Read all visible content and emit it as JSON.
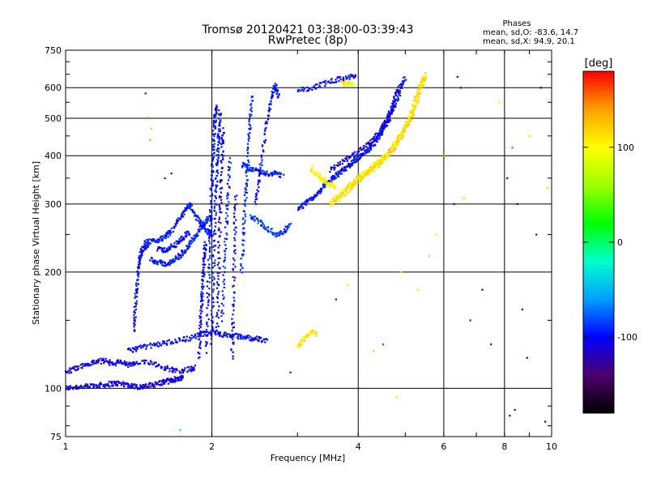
{
  "chart_data": {
    "type": "scatter",
    "title": "Tromsø 20120421 03:38:00-03:39:43",
    "subtitle": "RwPretec (8p)",
    "xlabel": "Frequency [MHz]",
    "ylabel": "Stationary phase Virtual Height [km]",
    "x_scale": "log",
    "y_scale": "log",
    "xlim": [
      1,
      10
    ],
    "ylim": [
      75,
      750
    ],
    "x_ticks": [
      1,
      2,
      4,
      6,
      8,
      10
    ],
    "y_ticks": [
      75,
      100,
      200,
      300,
      400,
      500,
      600,
      750
    ],
    "grid": true,
    "stats": {
      "heading": "Phases",
      "line_o": "mean, sd,O:  -83.6, 14.7",
      "line_x": "mean, sd,X:  94.9, 20.1"
    },
    "colorbar": {
      "label": "[deg]",
      "range": [
        -180,
        180
      ],
      "ticks": [
        100,
        0,
        -100
      ],
      "colormap": [
        "#000000",
        "#4b006e",
        "#0000ff",
        "#00a0ff",
        "#00ffcc",
        "#00ff00",
        "#a0ff00",
        "#ffff00",
        "#ffa000",
        "#ff0000"
      ]
    },
    "traces": [
      {
        "phase": -110,
        "points": [
          [
            1.0,
            100
          ],
          [
            1.05,
            101
          ],
          [
            1.1,
            101
          ],
          [
            1.15,
            102
          ],
          [
            1.2,
            102
          ],
          [
            1.25,
            103
          ],
          [
            1.3,
            103
          ],
          [
            1.35,
            102
          ],
          [
            1.4,
            101
          ],
          [
            1.45,
            101
          ],
          [
            1.5,
            102
          ],
          [
            1.55,
            103
          ],
          [
            1.6,
            104
          ],
          [
            1.65,
            105
          ],
          [
            1.7,
            106
          ],
          [
            1.75,
            107
          ]
        ]
      },
      {
        "phase": -105,
        "points": [
          [
            1.0,
            110
          ],
          [
            1.05,
            113
          ],
          [
            1.1,
            115
          ],
          [
            1.15,
            117
          ],
          [
            1.2,
            118
          ],
          [
            1.25,
            116
          ],
          [
            1.3,
            117
          ],
          [
            1.35,
            115
          ],
          [
            1.4,
            116
          ],
          [
            1.5,
            117
          ],
          [
            1.6,
            113
          ],
          [
            1.7,
            111
          ],
          [
            1.8,
            112
          ],
          [
            1.85,
            113
          ]
        ]
      },
      {
        "phase": -100,
        "points": [
          [
            1.35,
            125
          ],
          [
            1.4,
            127
          ],
          [
            1.5,
            129
          ],
          [
            1.6,
            131
          ],
          [
            1.7,
            133
          ],
          [
            1.8,
            135
          ],
          [
            1.9,
            138
          ],
          [
            2.0,
            140
          ],
          [
            2.1,
            138
          ],
          [
            2.2,
            137
          ],
          [
            2.3,
            136
          ],
          [
            2.4,
            135
          ],
          [
            2.5,
            134
          ],
          [
            2.6,
            133
          ]
        ]
      },
      {
        "phase": -100,
        "points": [
          [
            1.38,
            140
          ],
          [
            1.39,
            160
          ],
          [
            1.4,
            180
          ],
          [
            1.41,
            200
          ],
          [
            1.42,
            215
          ],
          [
            1.43,
            225
          ],
          [
            1.45,
            232
          ],
          [
            1.48,
            236
          ]
        ]
      },
      {
        "phase": -95,
        "points": [
          [
            1.45,
            238
          ],
          [
            1.5,
            240
          ],
          [
            1.55,
            242
          ],
          [
            1.6,
            246
          ],
          [
            1.65,
            255
          ],
          [
            1.7,
            270
          ],
          [
            1.75,
            285
          ],
          [
            1.8,
            300
          ],
          [
            1.85,
            280
          ],
          [
            1.9,
            265
          ],
          [
            1.95,
            255
          ],
          [
            2.0,
            250
          ]
        ]
      },
      {
        "phase": -95,
        "points": [
          [
            1.5,
            215
          ],
          [
            1.55,
            212
          ],
          [
            1.6,
            210
          ],
          [
            1.65,
            212
          ],
          [
            1.7,
            218
          ],
          [
            1.75,
            226
          ],
          [
            1.8,
            236
          ],
          [
            1.85,
            248
          ],
          [
            1.9,
            260
          ],
          [
            1.95,
            272
          ],
          [
            2.0,
            280
          ]
        ]
      },
      {
        "phase": -100,
        "points": [
          [
            1.55,
            230
          ],
          [
            1.6,
            228
          ],
          [
            1.65,
            232
          ],
          [
            1.7,
            238
          ],
          [
            1.75,
            246
          ],
          [
            1.8,
            255
          ]
        ]
      },
      {
        "phase": -105,
        "points": [
          [
            1.88,
            120
          ],
          [
            1.89,
            140
          ],
          [
            1.9,
            160
          ],
          [
            1.91,
            180
          ],
          [
            1.92,
            200
          ],
          [
            1.93,
            220
          ],
          [
            1.94,
            240
          ]
        ]
      },
      {
        "phase": -100,
        "points": [
          [
            1.95,
            125
          ],
          [
            1.96,
            160
          ],
          [
            1.97,
            200
          ],
          [
            1.98,
            250
          ],
          [
            1.99,
            300
          ],
          [
            2.0,
            350
          ],
          [
            2.01,
            400
          ],
          [
            2.02,
            450
          ],
          [
            2.03,
            500
          ],
          [
            2.04,
            540
          ]
        ]
      },
      {
        "phase": -95,
        "points": [
          [
            2.0,
            130
          ],
          [
            2.01,
            170
          ],
          [
            2.02,
            220
          ],
          [
            2.03,
            280
          ],
          [
            2.04,
            330
          ],
          [
            2.05,
            380
          ],
          [
            2.06,
            430
          ],
          [
            2.07,
            480
          ],
          [
            2.08,
            520
          ]
        ]
      },
      {
        "phase": -110,
        "points": [
          [
            2.05,
            140
          ],
          [
            2.06,
            180
          ],
          [
            2.07,
            230
          ],
          [
            2.08,
            290
          ],
          [
            2.09,
            350
          ],
          [
            2.1,
            420
          ],
          [
            2.11,
            470
          ]
        ]
      },
      {
        "phase": -95,
        "points": [
          [
            2.1,
            150
          ],
          [
            2.12,
            200
          ],
          [
            2.14,
            260
          ],
          [
            2.16,
            320
          ],
          [
            2.18,
            400
          ]
        ]
      },
      {
        "phase": -105,
        "points": [
          [
            2.2,
            120
          ],
          [
            2.21,
            150
          ],
          [
            2.22,
            200
          ],
          [
            2.23,
            260
          ],
          [
            2.24,
            320
          ]
        ]
      },
      {
        "phase": -90,
        "points": [
          [
            2.3,
            200
          ],
          [
            2.32,
            250
          ],
          [
            2.34,
            300
          ],
          [
            2.36,
            350
          ],
          [
            2.38,
            420
          ],
          [
            2.4,
            500
          ],
          [
            2.42,
            580
          ]
        ]
      },
      {
        "phase": -100,
        "points": [
          [
            2.45,
            300
          ],
          [
            2.5,
            350
          ],
          [
            2.55,
            420
          ],
          [
            2.6,
            500
          ],
          [
            2.65,
            560
          ],
          [
            2.7,
            610
          ],
          [
            2.75,
            560
          ]
        ]
      },
      {
        "phase": -85,
        "points": [
          [
            2.4,
            280
          ],
          [
            2.5,
            270
          ],
          [
            2.6,
            260
          ],
          [
            2.7,
            250
          ],
          [
            2.8,
            255
          ],
          [
            2.9,
            265
          ]
        ]
      },
      {
        "phase": -95,
        "points": [
          [
            2.3,
            380
          ],
          [
            2.4,
            370
          ],
          [
            2.5,
            365
          ],
          [
            2.6,
            360
          ],
          [
            2.7,
            360
          ],
          [
            2.8,
            355
          ]
        ]
      },
      {
        "phase": -100,
        "points": [
          [
            3.0,
            290
          ],
          [
            3.1,
            300
          ],
          [
            3.2,
            310
          ],
          [
            3.3,
            320
          ],
          [
            3.4,
            335
          ],
          [
            3.5,
            345
          ],
          [
            3.6,
            355
          ],
          [
            3.7,
            365
          ],
          [
            3.8,
            375
          ],
          [
            3.9,
            385
          ],
          [
            4.0,
            395
          ],
          [
            4.1,
            405
          ],
          [
            4.2,
            415
          ],
          [
            4.3,
            430
          ],
          [
            4.4,
            445
          ],
          [
            4.5,
            465
          ],
          [
            4.6,
            490
          ],
          [
            4.7,
            520
          ],
          [
            4.8,
            555
          ],
          [
            4.9,
            600
          ],
          [
            5.0,
            640
          ]
        ]
      },
      {
        "phase": -110,
        "points": [
          [
            3.5,
            365
          ],
          [
            3.7,
            385
          ],
          [
            3.9,
            400
          ],
          [
            4.1,
            420
          ],
          [
            4.3,
            440
          ],
          [
            4.45,
            465
          ],
          [
            4.55,
            490
          ],
          [
            4.65,
            520
          ],
          [
            4.75,
            560
          ],
          [
            4.85,
            610
          ]
        ]
      },
      {
        "phase": -100,
        "points": [
          [
            3.0,
            590
          ],
          [
            3.2,
            600
          ],
          [
            3.4,
            615
          ],
          [
            3.6,
            630
          ],
          [
            3.8,
            640
          ],
          [
            3.95,
            640
          ]
        ]
      },
      {
        "phase": 110,
        "points": [
          [
            3.5,
            300
          ],
          [
            3.6,
            310
          ],
          [
            3.7,
            320
          ],
          [
            3.8,
            330
          ],
          [
            3.9,
            340
          ],
          [
            4.0,
            350
          ],
          [
            4.1,
            358
          ],
          [
            4.2,
            365
          ],
          [
            4.3,
            375
          ],
          [
            4.4,
            385
          ],
          [
            4.5,
            395
          ],
          [
            4.6,
            405
          ],
          [
            4.7,
            420
          ],
          [
            4.8,
            435
          ],
          [
            4.9,
            455
          ],
          [
            5.0,
            475
          ],
          [
            5.1,
            500
          ],
          [
            5.2,
            540
          ],
          [
            5.3,
            580
          ],
          [
            5.4,
            620
          ],
          [
            5.5,
            650
          ]
        ]
      },
      {
        "phase": 115,
        "points": [
          [
            3.6,
            305
          ],
          [
            3.8,
            322
          ],
          [
            4.0,
            345
          ],
          [
            4.2,
            362
          ],
          [
            4.4,
            380
          ],
          [
            4.6,
            400
          ],
          [
            4.8,
            428
          ],
          [
            5.0,
            465
          ],
          [
            5.2,
            520
          ],
          [
            5.4,
            600
          ],
          [
            5.5,
            640
          ]
        ]
      },
      {
        "phase": 100,
        "points": [
          [
            3.2,
            370
          ],
          [
            3.3,
            355
          ],
          [
            3.4,
            345
          ],
          [
            3.5,
            338
          ],
          [
            3.6,
            332
          ]
        ]
      },
      {
        "phase": 110,
        "points": [
          [
            3.0,
            128
          ],
          [
            3.1,
            135
          ],
          [
            3.2,
            140
          ],
          [
            3.3,
            138
          ]
        ]
      },
      {
        "phase": 105,
        "points": [
          [
            3.7,
            620
          ],
          [
            3.8,
            610
          ],
          [
            3.9,
            615
          ]
        ]
      }
    ],
    "scattered_points": [
      {
        "x": 1.48,
        "y": 505,
        "phase": 100
      },
      {
        "x": 1.5,
        "y": 470,
        "phase": 60
      },
      {
        "x": 1.49,
        "y": 440,
        "phase": 40
      },
      {
        "x": 1.46,
        "y": 580,
        "phase": -120
      },
      {
        "x": 1.6,
        "y": 350,
        "phase": -95
      },
      {
        "x": 1.65,
        "y": 360,
        "phase": -100
      },
      {
        "x": 1.72,
        "y": 78,
        "phase": 10
      },
      {
        "x": 2.9,
        "y": 110,
        "phase": -140
      },
      {
        "x": 3.6,
        "y": 170,
        "phase": -110
      },
      {
        "x": 3.8,
        "y": 185,
        "phase": 110
      },
      {
        "x": 4.3,
        "y": 125,
        "phase": 120
      },
      {
        "x": 4.5,
        "y": 130,
        "phase": 170
      },
      {
        "x": 4.8,
        "y": 95,
        "phase": 110
      },
      {
        "x": 4.9,
        "y": 200,
        "phase": 115
      },
      {
        "x": 5.3,
        "y": 180,
        "phase": 110
      },
      {
        "x": 5.6,
        "y": 220,
        "phase": 120
      },
      {
        "x": 5.8,
        "y": 250,
        "phase": 90
      },
      {
        "x": 6.0,
        "y": 400,
        "phase": 150
      },
      {
        "x": 6.3,
        "y": 300,
        "phase": -100
      },
      {
        "x": 6.4,
        "y": 640,
        "phase": -100
      },
      {
        "x": 6.5,
        "y": 600,
        "phase": -110
      },
      {
        "x": 6.6,
        "y": 310,
        "phase": 120
      },
      {
        "x": 6.8,
        "y": 150,
        "phase": -90
      },
      {
        "x": 7.2,
        "y": 180,
        "phase": -100
      },
      {
        "x": 7.5,
        "y": 130,
        "phase": -120
      },
      {
        "x": 7.8,
        "y": 550,
        "phase": 110
      },
      {
        "x": 8.1,
        "y": 350,
        "phase": -110
      },
      {
        "x": 8.3,
        "y": 420,
        "phase": 160
      },
      {
        "x": 8.5,
        "y": 300,
        "phase": -100
      },
      {
        "x": 8.7,
        "y": 160,
        "phase": -120
      },
      {
        "x": 8.9,
        "y": 120,
        "phase": -110
      },
      {
        "x": 9.0,
        "y": 450,
        "phase": 80
      },
      {
        "x": 9.3,
        "y": 250,
        "phase": -130
      },
      {
        "x": 9.5,
        "y": 600,
        "phase": -100
      },
      {
        "x": 9.7,
        "y": 82,
        "phase": -110
      },
      {
        "x": 9.8,
        "y": 330,
        "phase": 120
      },
      {
        "x": 8.4,
        "y": 88,
        "phase": -120
      },
      {
        "x": 8.2,
        "y": 85,
        "phase": -100
      }
    ]
  }
}
